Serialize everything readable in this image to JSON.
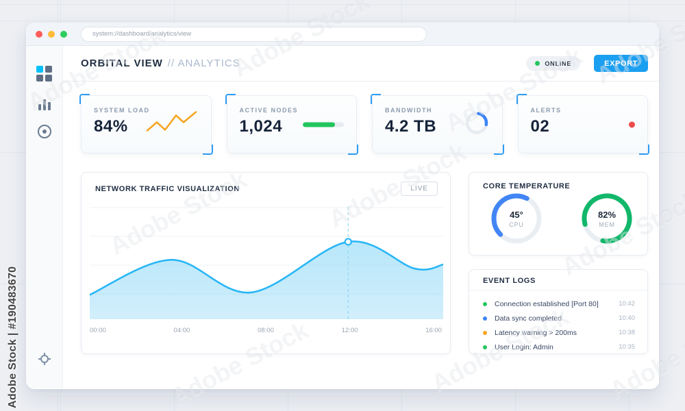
{
  "browser": {
    "url": "system://dashboard/analytics/view"
  },
  "sidebar": {
    "icons": [
      "grid-icon",
      "bar-chart-icon",
      "record-icon",
      "locate-icon"
    ]
  },
  "header": {
    "title": "ORBITAL VIEW",
    "subtitle": "// ANALYTICS",
    "status_label": "ONLINE",
    "export_label": "EXPORT"
  },
  "stats": [
    {
      "label": "SYSTEM LOAD",
      "value": "84%",
      "widget": "orange-sparkline"
    },
    {
      "label": "ACTIVE NODES",
      "value": "1,024",
      "widget": "green-progress-bar",
      "progress": "78%"
    },
    {
      "label": "BANDWIDTH",
      "value": "4.2 TB",
      "widget": "blue-spinner"
    },
    {
      "label": "ALERTS",
      "value": "02",
      "widget": "red-dot"
    }
  ],
  "chart_panel": {
    "title": "NETWORK TRAFFIC VISUALIZATION",
    "live_label": "LIVE"
  },
  "chart_data": {
    "type": "area",
    "title": "NETWORK TRAFFIC VISUALIZATION",
    "x_ticks": [
      "00:00",
      "04:00",
      "08:00",
      "12:00",
      "16:00"
    ],
    "x_range": [
      0,
      16
    ],
    "y_range": [
      0,
      100
    ],
    "grid": "horizontal",
    "line_color": "#29b6f6",
    "points": [
      {
        "t": 0,
        "v": 21
      },
      {
        "t": 3.7,
        "v": 51
      },
      {
        "t": 7.3,
        "v": 23
      },
      {
        "t": 11.7,
        "v": 66.5
      },
      {
        "t": 14.7,
        "v": 43.5
      },
      {
        "t": 16,
        "v": 47
      }
    ],
    "marker_index": 3
  },
  "core_temperature": {
    "title": "CORE TEMPERATURE",
    "gauges": [
      {
        "value": "45°",
        "label": "CPU",
        "pct": 45,
        "color": "#4285f4",
        "start_angle": 135
      },
      {
        "value": "82%",
        "label": "MEM",
        "pct": 82,
        "color": "#12b76a",
        "start_angle": 165
      }
    ]
  },
  "event_logs": {
    "title": "EVENT LOGS",
    "entries": [
      {
        "text": "Connection established [Port 80]",
        "time": "10:42",
        "color": "#22c55e"
      },
      {
        "text": "Data sync completed",
        "time": "10:40",
        "color": "#3b82f6"
      },
      {
        "text": "Latency warning > 200ms",
        "time": "10:38",
        "color": "#f5a623"
      },
      {
        "text": "User Login: Admin",
        "time": "10:35",
        "color": "#22c55e"
      }
    ]
  },
  "colors": {
    "accent_blue": "#1b9ff1",
    "online_green": "#22c55e",
    "alert_red": "#ee4b4b",
    "bracket_blue": "#2d9cf4",
    "spark_orange": "#f5a623"
  },
  "watermark": {
    "ghost_text": "Adobe Stock",
    "side_text": "Adobe Stock | #190483670"
  }
}
